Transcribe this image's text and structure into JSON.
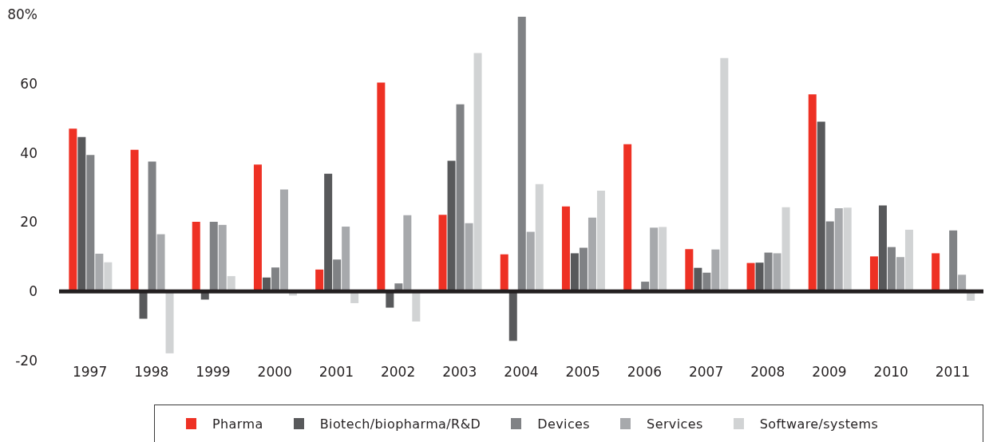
{
  "chart_data": {
    "type": "bar",
    "categories": [
      "1997",
      "1998",
      "1999",
      "2000",
      "2001",
      "2002",
      "2003",
      "2004",
      "2005",
      "2006",
      "2007",
      "2008",
      "2009",
      "2010",
      "2011"
    ],
    "series": [
      {
        "name": "Pharma",
        "color": "#ee3124",
        "values": [
          47,
          40.9,
          20.1,
          36.6,
          6.3,
          60.3,
          22.1,
          10.7,
          24.5,
          42.5,
          12.2,
          8.2,
          56.9,
          10.1,
          11.0
        ]
      },
      {
        "name": "Biotech/biopharma/R&D",
        "color": "#58595b",
        "values": [
          44.6,
          -7.9,
          -2.4,
          4.0,
          34.0,
          -4.7,
          37.7,
          -14.3,
          11.0,
          null,
          6.8,
          8.3,
          49.0,
          24.8,
          null
        ]
      },
      {
        "name": "Devices",
        "color": "#808285",
        "values": [
          39.4,
          37.5,
          20.1,
          6.9,
          9.2,
          2.3,
          54.0,
          79.3,
          12.6,
          2.8,
          5.4,
          11.2,
          20.2,
          12.8,
          17.6
        ]
      },
      {
        "name": "Services",
        "color": "#a7a9ac",
        "values": [
          10.9,
          16.5,
          19.2,
          29.4,
          18.7,
          22.0,
          19.7,
          17.2,
          21.3,
          18.4,
          12.1,
          11.0,
          24.0,
          9.9,
          4.8
        ]
      },
      {
        "name": "Software/systems",
        "color": "#d1d3d4",
        "values": [
          8.4,
          -17.9,
          4.4,
          -1.2,
          -3.4,
          -8.7,
          68.8,
          31.0,
          29.1,
          18.6,
          67.4,
          24.3,
          24.2,
          17.8,
          -2.7
        ]
      }
    ],
    "ylim": [
      -20,
      80
    ],
    "yticks": [
      {
        "value": 80,
        "label": "80%"
      },
      60,
      40,
      20,
      0,
      -20
    ],
    "legend": "bottom"
  }
}
